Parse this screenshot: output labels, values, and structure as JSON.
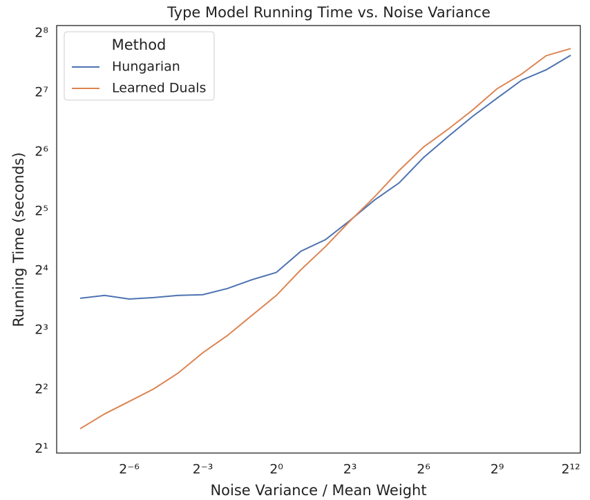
{
  "chart_data": {
    "type": "line",
    "title": "Type Model Running Time vs. Noise Variance",
    "x_label": "Noise Variance / Mean Weight",
    "y_label": "Running Time (seconds)",
    "x": [
      0.00390625,
      0.0078125,
      0.015625,
      0.03125,
      0.0625,
      0.125,
      0.25,
      0.5,
      1,
      2,
      4,
      8,
      16,
      32,
      64,
      128,
      256,
      512,
      1024,
      2048,
      4096
    ],
    "series": [
      {
        "name": "Hungarian",
        "color": "#4c72b0",
        "values": [
          11.6,
          12.0,
          11.5,
          11.7,
          12.0,
          12.1,
          13.0,
          14.4,
          15.7,
          20.1,
          23.0,
          28.8,
          36.5,
          44.6,
          60,
          76.6,
          97,
          120,
          148,
          167,
          198
        ]
      },
      {
        "name": "Learned Duals",
        "color": "#dd8452",
        "values": [
          2.53,
          3.01,
          3.48,
          4.03,
          4.85,
          6.14,
          7.5,
          9.5,
          12.0,
          16.2,
          21.2,
          28.6,
          37.9,
          51.5,
          67.8,
          83.5,
          104.5,
          134,
          159,
          197,
          214
        ]
      }
    ],
    "xscale": "log",
    "yscale": "log",
    "log_base": 2,
    "xlim": [
      0.002011,
      5370
    ],
    "ylim": [
      1.905,
      280
    ],
    "xticks": [
      {
        "value": 0.015625,
        "label": "2⁻⁶"
      },
      {
        "value": 0.125,
        "label": "2⁻³"
      },
      {
        "value": 1,
        "label": "2⁰"
      },
      {
        "value": 8,
        "label": "2³"
      },
      {
        "value": 64,
        "label": "2⁶"
      },
      {
        "value": 512,
        "label": "2⁹"
      },
      {
        "value": 4096,
        "label": "2¹²"
      }
    ],
    "yticks": [
      {
        "value": 2,
        "label": "2¹"
      },
      {
        "value": 4,
        "label": "2²"
      },
      {
        "value": 8,
        "label": "2³"
      },
      {
        "value": 16,
        "label": "2⁴"
      },
      {
        "value": 32,
        "label": "2⁵"
      },
      {
        "value": 64,
        "label": "2⁶"
      },
      {
        "value": 128,
        "label": "2⁷"
      },
      {
        "value": 256,
        "label": "2⁸"
      }
    ],
    "grid": false,
    "legend": {
      "title": "Method",
      "position": "upper left"
    }
  }
}
